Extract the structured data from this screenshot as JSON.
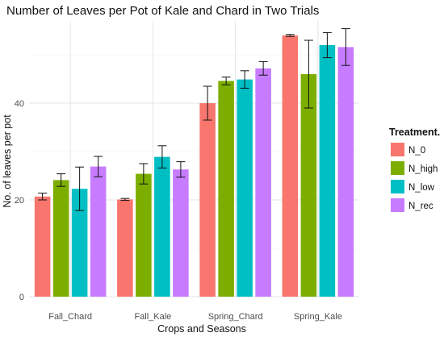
{
  "chart_data": {
    "type": "bar",
    "title": "Number of Leaves per Pot of Kale and Chard in Two Trials",
    "xlabel": "Crops and Seasons",
    "ylabel": "No. of leaves per pot",
    "categories": [
      "Fall_Chard",
      "Fall_Kale",
      "Spring_Chard",
      "Spring_Kale"
    ],
    "y_ticks": [
      0,
      20,
      40
    ],
    "ylim": [
      0,
      57
    ],
    "legend_title": "Treatment.",
    "legend_position": "right",
    "grid": true,
    "error_bars": true,
    "series": [
      {
        "name": "N_0",
        "color": "#F8766D",
        "values": [
          20.7,
          20.1,
          40.0,
          54.0
        ],
        "error": [
          0.7,
          0.2,
          3.5,
          0.2
        ]
      },
      {
        "name": "N_high",
        "color": "#7CAE00",
        "values": [
          24.1,
          25.4,
          44.6,
          46.0
        ],
        "error": [
          1.3,
          2.1,
          0.8,
          7.0
        ]
      },
      {
        "name": "N_low",
        "color": "#00BFC4",
        "values": [
          22.3,
          28.9,
          44.9,
          52.0
        ],
        "error": [
          4.5,
          2.3,
          1.8,
          2.6
        ]
      },
      {
        "name": "N_rec",
        "color": "#C77CFF",
        "values": [
          26.9,
          26.3,
          47.2,
          51.6
        ],
        "error": [
          2.1,
          1.6,
          1.4,
          3.8
        ]
      }
    ]
  }
}
